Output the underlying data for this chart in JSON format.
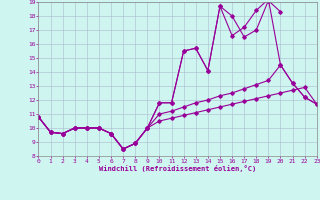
{
  "xlabel": "Windchill (Refroidissement éolien,°C)",
  "background_color": "#cef5f0",
  "grid_color": "#aabbcc",
  "line_color": "#990099",
  "xmin": 0,
  "xmax": 23,
  "ymin": 8,
  "ymax": 19,
  "line1_x": [
    0,
    1,
    2,
    3,
    4,
    5,
    6,
    7,
    8,
    9,
    10,
    11,
    12,
    13,
    14,
    15,
    16,
    17,
    18,
    19,
    20
  ],
  "line1_y": [
    10.8,
    9.7,
    9.6,
    10.0,
    10.0,
    10.0,
    9.6,
    8.5,
    8.9,
    10.0,
    11.8,
    11.8,
    15.5,
    15.7,
    14.1,
    18.7,
    18.0,
    16.5,
    17.0,
    19.1,
    18.3
  ],
  "line2_x": [
    0,
    1,
    2,
    3,
    4,
    5,
    6,
    7,
    8,
    9,
    10,
    11,
    12,
    13,
    14,
    15,
    16,
    17,
    18,
    19,
    20,
    21,
    22,
    23
  ],
  "line2_y": [
    10.8,
    9.7,
    9.6,
    10.0,
    10.0,
    10.0,
    9.6,
    8.5,
    8.9,
    10.0,
    11.8,
    11.8,
    15.5,
    15.7,
    14.1,
    18.7,
    16.6,
    17.2,
    18.4,
    19.2,
    14.5,
    13.2,
    12.2,
    11.7
  ],
  "line3_x": [
    0,
    1,
    2,
    3,
    4,
    5,
    6,
    7,
    8,
    9,
    10,
    11,
    12,
    13,
    14,
    15,
    16,
    17,
    18,
    19,
    20,
    21,
    22,
    23
  ],
  "line3_y": [
    10.8,
    9.7,
    9.6,
    10.0,
    10.0,
    10.0,
    9.6,
    8.5,
    8.9,
    10.0,
    11.0,
    11.2,
    11.5,
    11.8,
    12.0,
    12.3,
    12.5,
    12.8,
    13.1,
    13.4,
    14.5,
    13.2,
    12.2,
    11.7
  ],
  "line4_x": [
    0,
    1,
    2,
    3,
    4,
    5,
    6,
    7,
    8,
    9,
    10,
    11,
    12,
    13,
    14,
    15,
    16,
    17,
    18,
    19,
    20,
    21,
    22,
    23
  ],
  "line4_y": [
    10.8,
    9.7,
    9.6,
    10.0,
    10.0,
    10.0,
    9.6,
    8.5,
    8.9,
    10.0,
    10.5,
    10.7,
    10.9,
    11.1,
    11.3,
    11.5,
    11.7,
    11.9,
    12.1,
    12.3,
    12.5,
    12.7,
    12.9,
    11.7
  ]
}
